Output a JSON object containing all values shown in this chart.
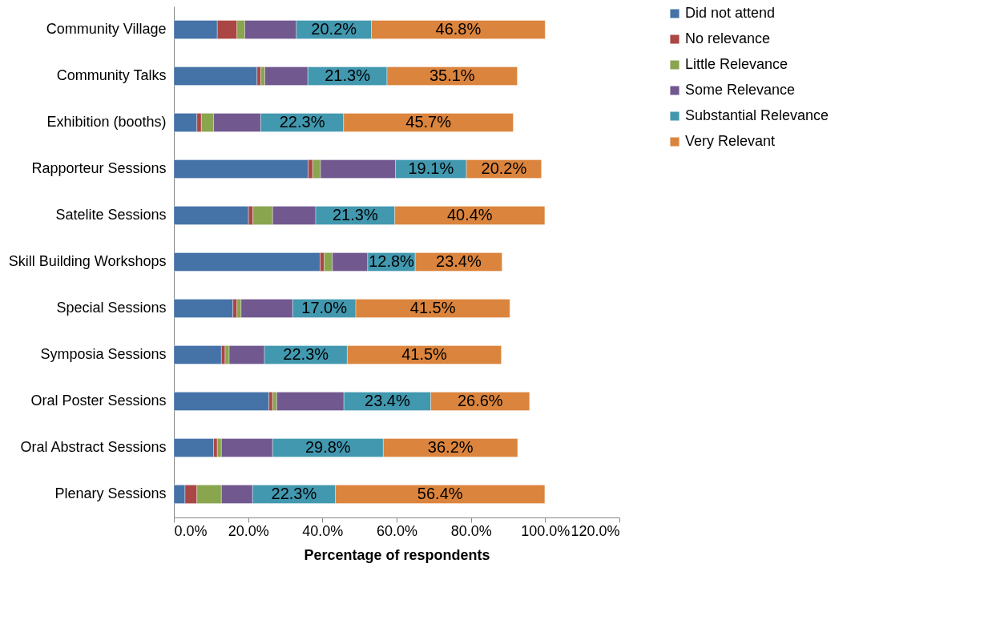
{
  "chart_data": {
    "type": "bar",
    "orientation": "horizontal",
    "stacked": true,
    "xlabel": "Percentage of respondents",
    "categories": [
      "Community Village",
      "Community Talks",
      "Exhibition (booths)",
      "Rapporteur Sessions",
      "Satelite Sessions",
      "Skill Building Workshops",
      "Special Sessions",
      "Symposia Sessions",
      "Oral Poster Sessions",
      "Oral Abstract Sessions",
      "Plenary Sessions"
    ],
    "series": [
      {
        "name": "Did not attend",
        "color": "#4572a7",
        "values": [
          11.7,
          22.4,
          6.2,
          36.2,
          20.1,
          39.4,
          15.9,
          12.8,
          25.6,
          10.7,
          3.0
        ]
      },
      {
        "name": "No relevance",
        "color": "#aa4643",
        "values": [
          5.3,
          1.0,
          1.2,
          1.2,
          1.2,
          1.1,
          1.1,
          1.0,
          1.0,
          1.0,
          3.2
        ]
      },
      {
        "name": "Little Relevance",
        "color": "#89a54e",
        "values": [
          2.1,
          1.1,
          3.3,
          2.1,
          5.3,
          2.2,
          1.1,
          1.1,
          1.1,
          1.1,
          6.6
        ]
      },
      {
        "name": "Some Relevance",
        "color": "#71588f",
        "values": [
          13.9,
          11.6,
          12.7,
          20.2,
          11.6,
          9.5,
          13.9,
          9.5,
          18.1,
          13.8,
          8.4
        ]
      },
      {
        "name": "Substantial Relevance",
        "color": "#4198af",
        "values": [
          20.2,
          21.3,
          22.3,
          19.1,
          21.3,
          12.8,
          17.0,
          22.3,
          23.4,
          29.8,
          22.3
        ],
        "value_labels": [
          "20.2%",
          "21.3%",
          "22.3%",
          "19.1%",
          "21.3%",
          "12.8%",
          "17.0%",
          "22.3%",
          "23.4%",
          "29.8%",
          "22.3%"
        ]
      },
      {
        "name": "Very Relevant",
        "color": "#db843d",
        "values": [
          46.8,
          35.1,
          45.7,
          20.2,
          40.4,
          23.4,
          41.5,
          41.5,
          26.6,
          36.2,
          56.4
        ],
        "value_labels": [
          "46.8%",
          "35.1%",
          "45.7%",
          "20.2%",
          "40.4%",
          "23.4%",
          "41.5%",
          "41.5%",
          "26.6%",
          "36.2%",
          "56.4%"
        ]
      }
    ],
    "xlim": [
      0,
      120
    ],
    "xticks": [
      {
        "value": 0,
        "label": "0.0%"
      },
      {
        "value": 20,
        "label": "20.0%"
      },
      {
        "value": 40,
        "label": "40.0%"
      },
      {
        "value": 60,
        "label": "60.0%"
      },
      {
        "value": 80,
        "label": "80.0%"
      },
      {
        "value": 100,
        "label": "100.0%"
      },
      {
        "value": 120,
        "label": "120.0%"
      }
    ],
    "grid": false,
    "legend": "right"
  }
}
